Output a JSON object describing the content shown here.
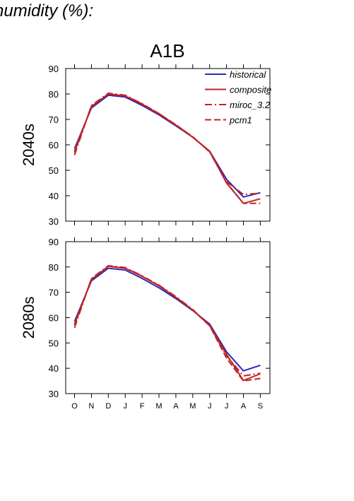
{
  "figure_title": "humidity (%):",
  "colors": {
    "historical": "#2a2ab8",
    "future": "#c42222"
  },
  "chart_data": [
    {
      "type": "line",
      "title": "A1B",
      "ylabel": "2040s",
      "categories": [
        "O",
        "N",
        "D",
        "J",
        "F",
        "M",
        "A",
        "M",
        "J",
        "J",
        "A",
        "S"
      ],
      "ylim": [
        30,
        90
      ],
      "yticks": [
        30,
        40,
        50,
        60,
        70,
        80,
        90
      ],
      "legend": "top-right",
      "series": [
        {
          "name": "historical",
          "style": "solid",
          "color": "#2a2ab8",
          "values": [
            58.5,
            74.5,
            79.5,
            78.8,
            75.5,
            71.8,
            67.5,
            63.0,
            57.5,
            46.5,
            39.5,
            41.2
          ]
        },
        {
          "name": "composite",
          "style": "solid",
          "color": "#c42222",
          "values": [
            57.5,
            75.0,
            80.0,
            79.2,
            76.0,
            72.2,
            67.8,
            63.0,
            57.5,
            45.0,
            37.0,
            38.8
          ]
        },
        {
          "name": "miroc_3.2",
          "style": "dashdot",
          "color": "#c42222",
          "values": [
            56.0,
            75.5,
            80.3,
            79.5,
            76.2,
            72.3,
            67.8,
            63.2,
            57.2,
            45.5,
            40.5,
            41.0
          ]
        },
        {
          "name": "pcm1",
          "style": "dash",
          "color": "#c42222",
          "values": [
            57.0,
            75.2,
            80.0,
            79.3,
            76.1,
            72.3,
            67.9,
            63.1,
            57.3,
            45.2,
            37.0,
            37.0
          ]
        }
      ]
    },
    {
      "type": "line",
      "title": "",
      "ylabel": "2080s",
      "categories": [
        "O",
        "N",
        "D",
        "J",
        "F",
        "M",
        "A",
        "M",
        "J",
        "J",
        "A",
        "S"
      ],
      "ylim": [
        30,
        90
      ],
      "yticks": [
        30,
        40,
        50,
        60,
        70,
        80,
        90
      ],
      "series": [
        {
          "name": "historical",
          "style": "solid",
          "color": "#2a2ab8",
          "values": [
            58.5,
            74.5,
            79.5,
            78.8,
            75.5,
            71.8,
            67.5,
            62.8,
            57.5,
            46.5,
            39.0,
            41.2
          ]
        },
        {
          "name": "composite",
          "style": "solid",
          "color": "#c42222",
          "values": [
            57.5,
            75.0,
            80.3,
            79.5,
            76.3,
            72.6,
            68.0,
            63.0,
            57.0,
            45.5,
            35.2,
            37.8
          ]
        },
        {
          "name": "miroc_3.2",
          "style": "dashdot",
          "color": "#c42222",
          "values": [
            56.0,
            75.5,
            80.5,
            79.8,
            76.5,
            72.8,
            68.3,
            63.2,
            56.8,
            45.0,
            37.0,
            38.0
          ]
        },
        {
          "name": "pcm1",
          "style": "dash",
          "color": "#c42222",
          "values": [
            57.0,
            75.2,
            80.3,
            79.6,
            76.4,
            72.7,
            68.1,
            63.0,
            56.8,
            44.0,
            35.0,
            36.0
          ]
        }
      ]
    }
  ]
}
